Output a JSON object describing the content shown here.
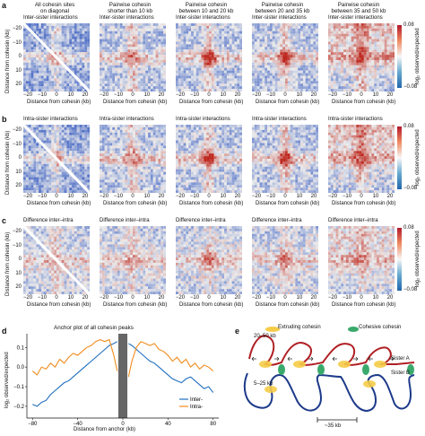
{
  "panels": {
    "a": {
      "letter": "a",
      "columns": [
        {
          "title_line1": "All cohesin sites",
          "title_line2": "on diagonal"
        },
        {
          "title_line1": "Pairwise cohesin",
          "title_line2": "shorter than 10 kb"
        },
        {
          "title_line1": "Pairwise cohesin",
          "title_line2": "between 10 and 20 kb"
        },
        {
          "title_line1": "Pairwise cohesin",
          "title_line2": "between 20 and 35 kb"
        },
        {
          "title_line1": "Pairwise cohesin",
          "title_line2": "between 35 and 50 kb"
        }
      ],
      "subtitle": "Inter-sister interactions"
    },
    "b": {
      "letter": "b",
      "subtitle": "Intra-sister interactions"
    },
    "c": {
      "letter": "c",
      "subtitle_first": "Difference inter–intra",
      "subtitle": "Difference inter–intra"
    },
    "heatmap_axes": {
      "ylabel": "Distance from cohesin (kb)",
      "xlabel": "Distance from cohesin (kb)",
      "y_ticks": [
        "−20",
        "−10",
        "0",
        "10",
        "20"
      ],
      "x_ticks": [
        "−20",
        "−10",
        "0",
        "10",
        "20"
      ],
      "colorbar_label": "log₂ observed/expected",
      "colorbar_max": "0.08",
      "colorbar_min": "−0.08"
    },
    "d": {
      "letter": "d",
      "title": "Anchor plot of all cohesin peaks",
      "ylabel": "log₂ observed/expected",
      "xlabel": "Distance from anchor (kb)",
      "legend": [
        "Inter-",
        "Intra-"
      ]
    },
    "e": {
      "letter": "e",
      "legend_extruding": "Extruding cohesin",
      "legend_cohesive": "Cohesive cohesin",
      "label_top_size": "20–50 kb",
      "label_small_size": "5–25 kb",
      "label_spacing": "~35 kb",
      "sister_a": "Sister A",
      "sister_b": "Sister B"
    }
  },
  "chart_data": {
    "type": "line",
    "title": "Anchor plot of all cohesin peaks",
    "xlabel": "Distance from anchor (kb)",
    "ylabel": "log₂ observed/expected",
    "x_ticks": [
      "−80",
      "−40",
      "0",
      "40",
      "80"
    ],
    "y_ticks": [
      "0.1",
      "0.0",
      "−0.1",
      "−0.2"
    ],
    "xlim": [
      -85,
      85
    ],
    "ylim": [
      -0.26,
      0.17
    ],
    "shaded_region": [
      -4,
      4
    ],
    "series": [
      {
        "name": "Inter-",
        "color": "#1f6fbf",
        "x": [
          -80,
          -76,
          -72,
          -68,
          -64,
          -60,
          -56,
          -52,
          -48,
          -44,
          -40,
          -36,
          -32,
          -28,
          -24,
          -20,
          -16,
          -12,
          -8,
          -5,
          5,
          8,
          12,
          16,
          20,
          24,
          28,
          32,
          36,
          40,
          44,
          48,
          52,
          56,
          60,
          64,
          68,
          72,
          76,
          80
        ],
        "y": [
          -0.19,
          -0.2,
          -0.18,
          -0.17,
          -0.14,
          -0.12,
          -0.1,
          -0.08,
          -0.07,
          -0.05,
          -0.03,
          -0.01,
          0.01,
          0.03,
          0.05,
          0.07,
          0.09,
          0.11,
          0.12,
          0.13,
          0.12,
          0.11,
          0.09,
          0.07,
          0.05,
          0.03,
          0.02,
          0.0,
          -0.02,
          -0.04,
          -0.06,
          -0.07,
          -0.08,
          -0.06,
          -0.05,
          -0.07,
          -0.09,
          -0.11,
          -0.1,
          -0.13
        ]
      },
      {
        "name": "Intra-",
        "color": "#f08c1e",
        "x": [
          -80,
          -76,
          -72,
          -68,
          -64,
          -60,
          -56,
          -52,
          -48,
          -44,
          -40,
          -36,
          -32,
          -28,
          -24,
          -20,
          -16,
          -12,
          -8,
          -5,
          5,
          8,
          12,
          16,
          20,
          24,
          28,
          32,
          36,
          40,
          44,
          48,
          52,
          56,
          60,
          64,
          68,
          72,
          76,
          80
        ],
        "y": [
          -0.02,
          -0.04,
          0.0,
          -0.01,
          0.02,
          0.0,
          0.04,
          0.02,
          0.05,
          0.07,
          0.06,
          0.08,
          0.1,
          0.11,
          0.13,
          0.14,
          0.13,
          0.14,
          0.06,
          -0.02,
          -0.05,
          0.03,
          0.1,
          0.13,
          0.12,
          0.11,
          0.12,
          0.09,
          0.08,
          0.06,
          0.03,
          0.05,
          0.02,
          0.04,
          0.0,
          0.02,
          -0.01,
          0.01,
          0.0,
          -0.02
        ]
      }
    ]
  }
}
